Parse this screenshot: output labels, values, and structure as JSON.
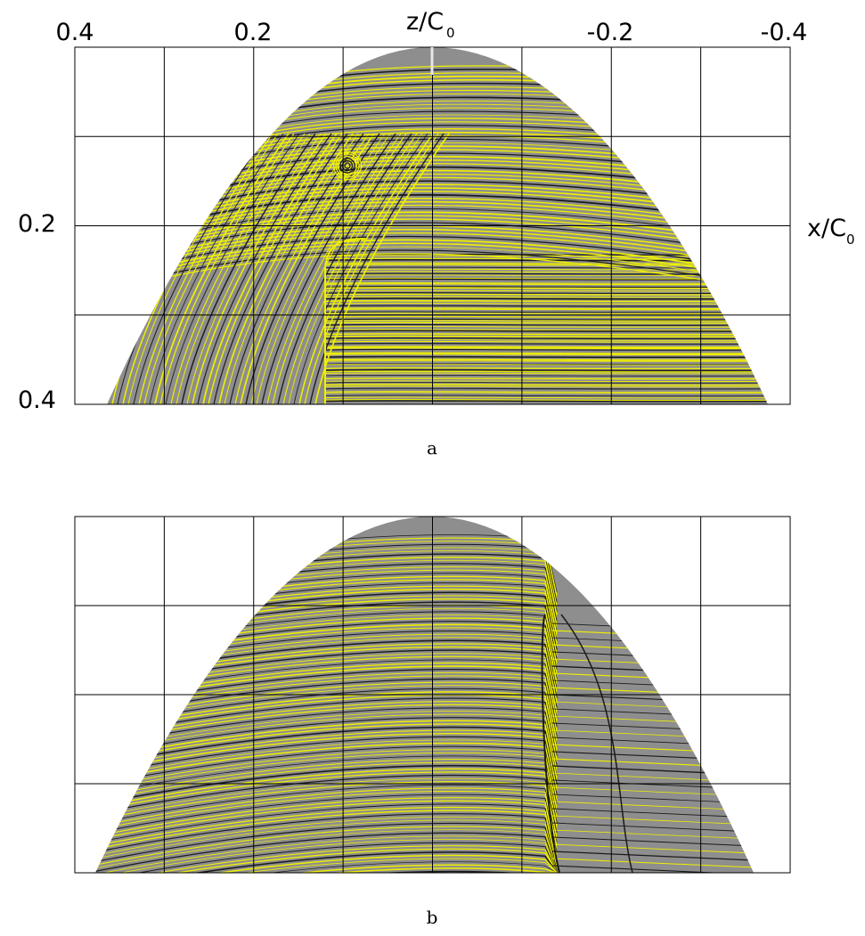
{
  "figure": {
    "panels": [
      {
        "caption": "a",
        "top_axis": {
          "label": "z/C",
          "label_sub": "0",
          "ticks": [
            "0.4",
            "0.2",
            "-0.2",
            "-0.4"
          ]
        },
        "right_axis": {
          "label": "x/C",
          "label_sub": "0"
        },
        "left_ticks": [
          "0.2",
          "0.4"
        ]
      },
      {
        "caption": "b"
      }
    ],
    "colors": {
      "surface": "#8e8e8e",
      "streamline_primary": "#f0f000",
      "streamline_secondary": "#1a1a1a",
      "grid": "#000000",
      "background": "#ffffff"
    }
  }
}
